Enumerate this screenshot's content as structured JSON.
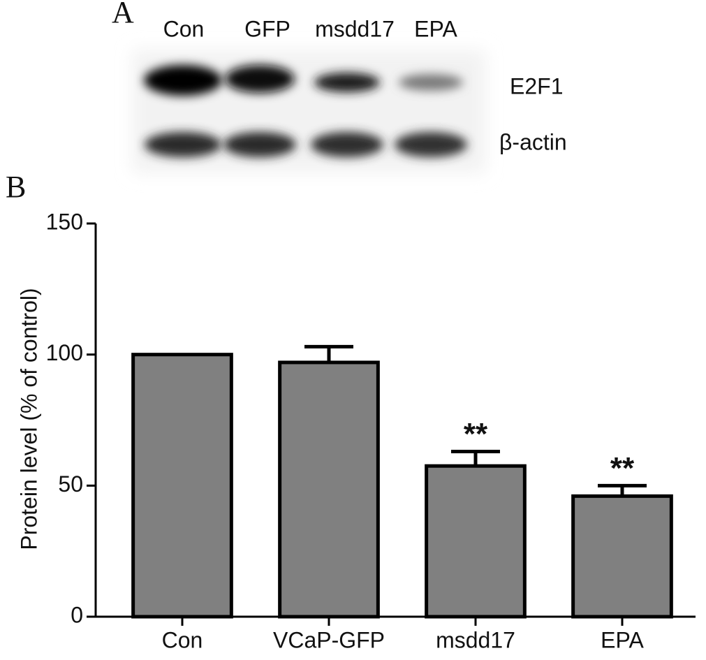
{
  "panel_a": {
    "label": "A",
    "lanes": [
      "Con",
      "GFP",
      "msdd17",
      "EPA"
    ],
    "bands": [
      "E2F1",
      "β-actin"
    ]
  },
  "chart_data": {
    "type": "bar",
    "panel_label": "B",
    "y_label": "Protein level (% of control)",
    "categories": [
      "Con",
      "VCaP-GFP",
      "msdd17",
      "EPA"
    ],
    "values": [
      100,
      97,
      57.5,
      46
    ],
    "errors": [
      null,
      6,
      5.5,
      4
    ],
    "significance": [
      null,
      null,
      "**",
      "**"
    ],
    "color": "#808080",
    "ylim": [
      0,
      150
    ],
    "yticks": [
      0,
      50,
      100,
      150
    ]
  }
}
